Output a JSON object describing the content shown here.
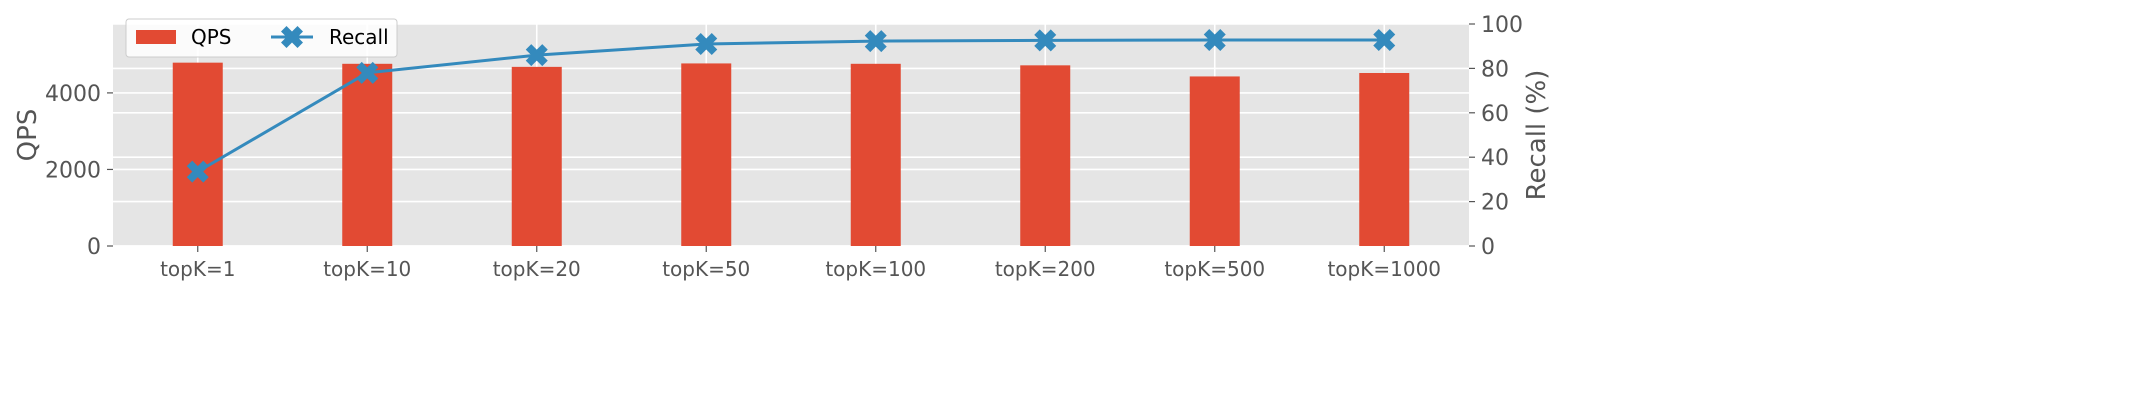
{
  "chart_data": {
    "type": "bar",
    "categories": [
      "topK=1",
      "topK=10",
      "topK=20",
      "topK=50",
      "topK=100",
      "topK=200",
      "topK=500",
      "topK=1000"
    ],
    "series": [
      {
        "name": "QPS",
        "kind": "bar",
        "axis": "left",
        "color": "#E24A33",
        "values": [
          4790,
          4760,
          4680,
          4770,
          4760,
          4720,
          4430,
          4520
        ]
      },
      {
        "name": "Recall",
        "kind": "line",
        "axis": "right",
        "color": "#348ABD",
        "marker": "X",
        "values": [
          33.5,
          78,
          86,
          91,
          92.3,
          92.6,
          92.8,
          92.8
        ]
      }
    ],
    "ylabel": "QPS",
    "ylim": [
      0,
      5800
    ],
    "y_ticks": [
      0,
      2000,
      4000
    ],
    "y2label": "Recall (%)",
    "y2lim": [
      0,
      100
    ],
    "y2_ticks": [
      0,
      20,
      40,
      60,
      80,
      100
    ],
    "grid": true,
    "style": "ggplot",
    "background": "#E5E5E5",
    "legend": {
      "placement": "top-left",
      "ncol": 2,
      "entries": [
        "QPS",
        "Recall"
      ]
    }
  }
}
